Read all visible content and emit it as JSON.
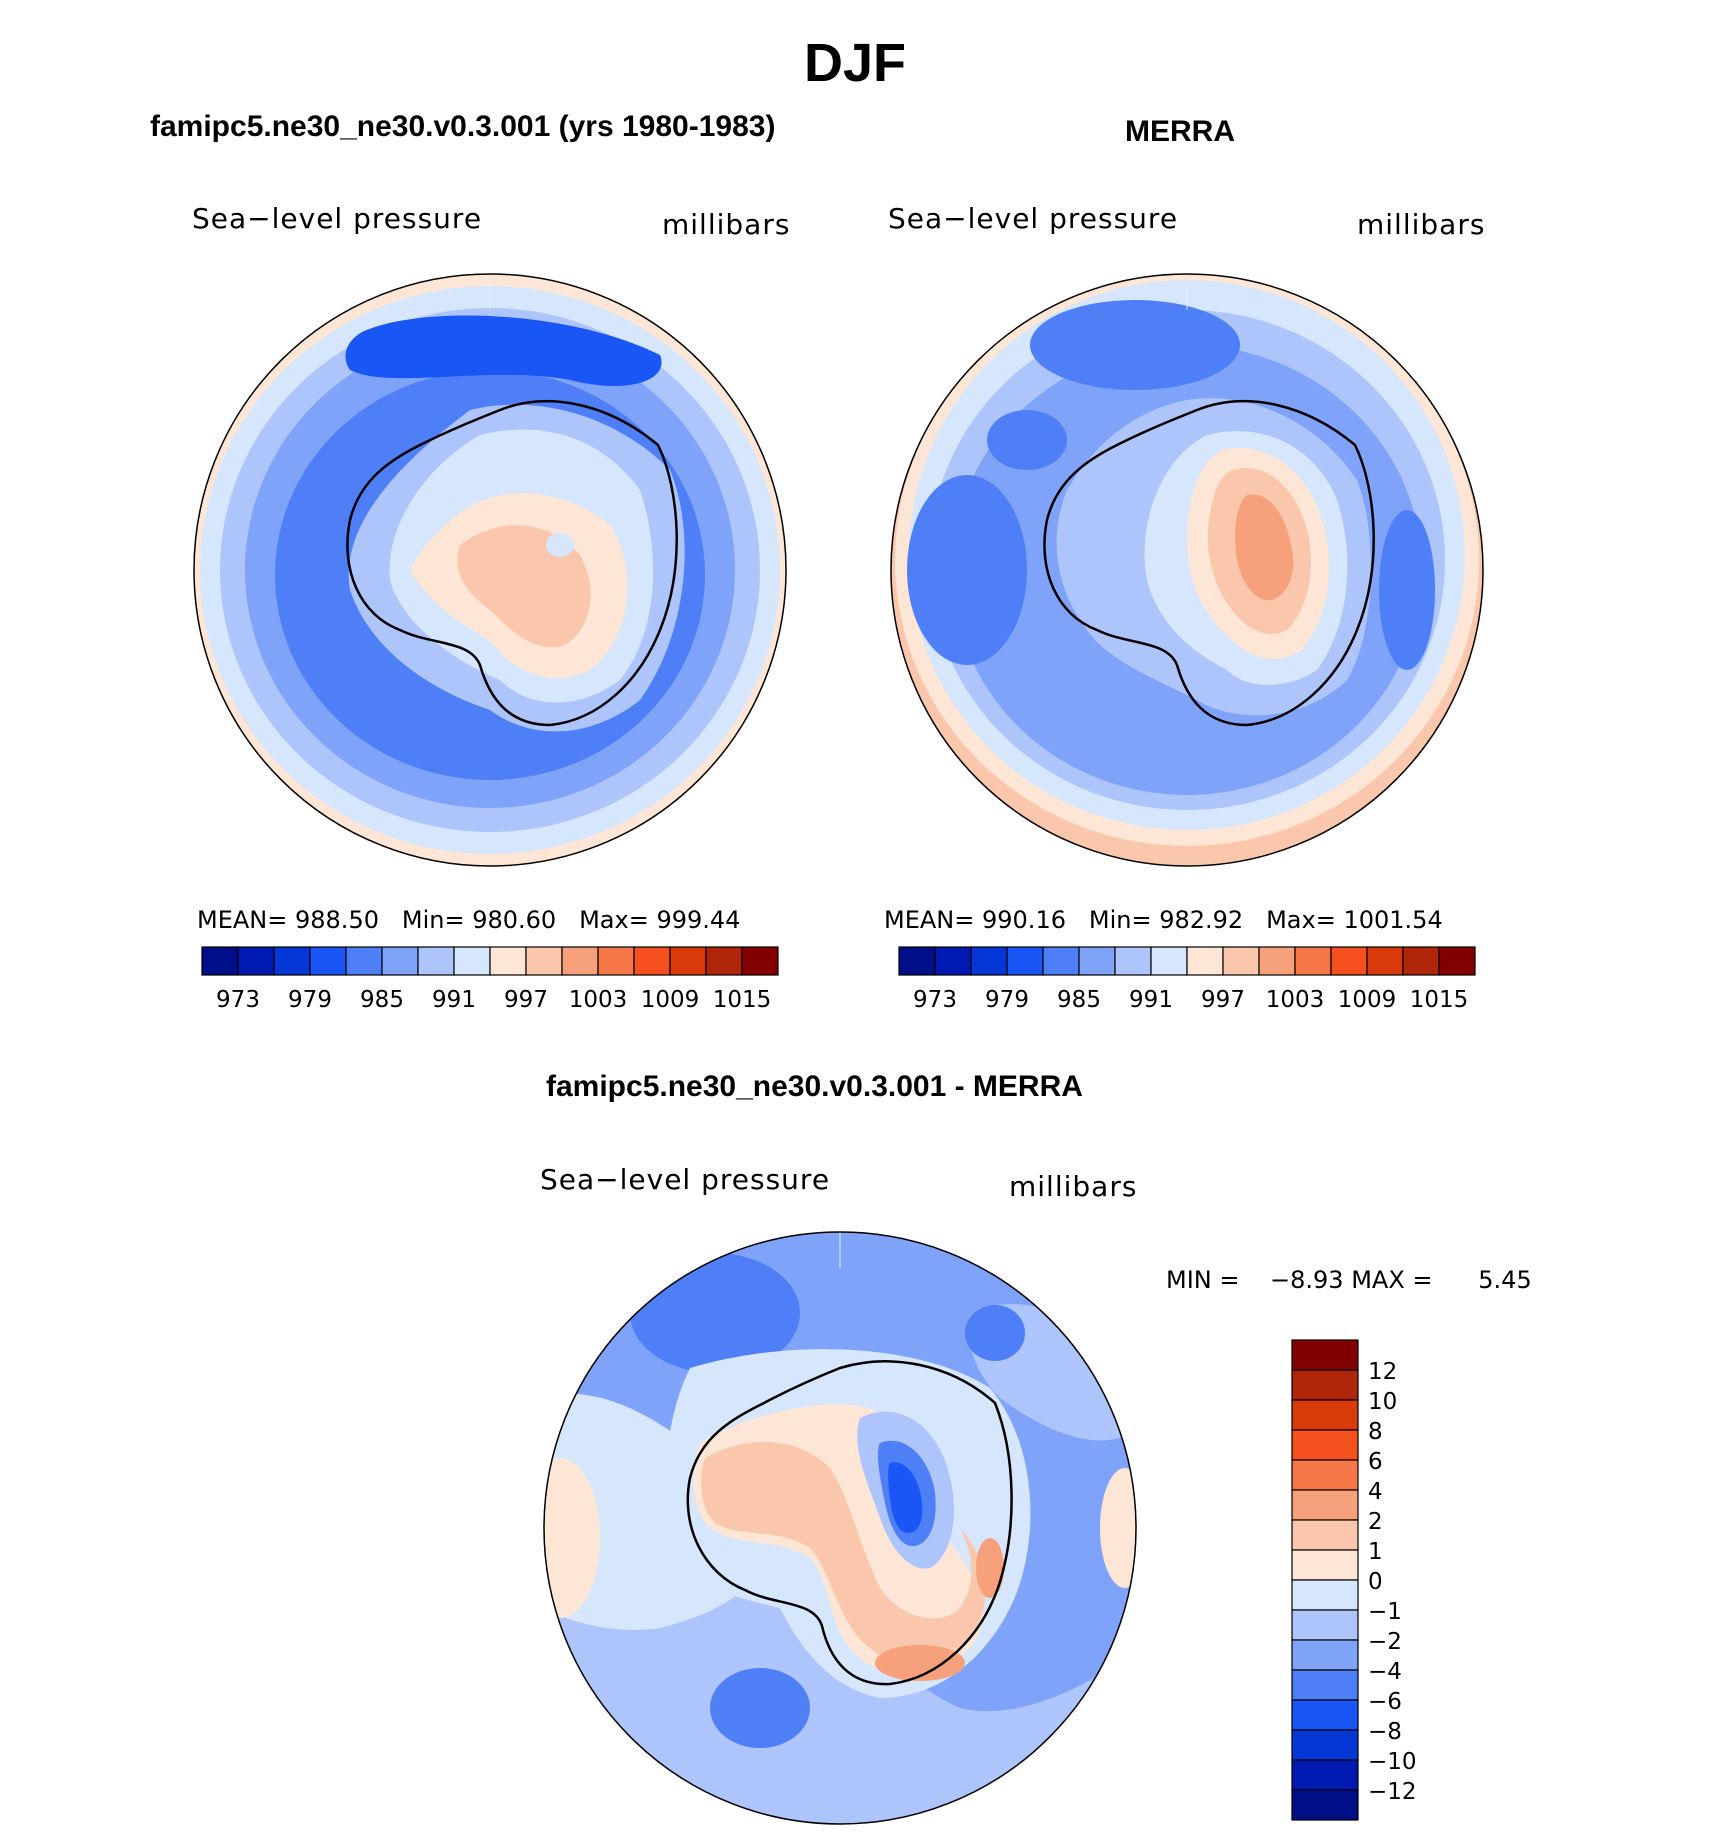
{
  "figure": {
    "title": "DJF"
  },
  "panels": [
    {
      "title": "famipc5.ne30_ne30.v0.3.001 (yrs 1980-1983)",
      "variable": "Sea−level pressure",
      "units": "millibars",
      "stats": {
        "mean_label": "MEAN=",
        "mean": "988.50",
        "min_label": "Min=",
        "min": "980.60",
        "max_label": "Max=",
        "max": "999.44"
      }
    },
    {
      "title": "MERRA",
      "variable": "Sea−level pressure",
      "units": "millibars",
      "stats": {
        "mean_label": "MEAN=",
        "mean": "990.16",
        "min_label": "Min=",
        "min": "982.92",
        "max_label": "Max=",
        "max": "1001.54"
      }
    },
    {
      "title": "famipc5.ne30_ne30.v0.3.001 - MERRA",
      "variable": "Sea−level pressure",
      "units": "millibars",
      "stats": {
        "min_label": "MIN =",
        "min": "−8.93",
        "max_label": "MAX =",
        "max": "5.45"
      }
    }
  ],
  "chart_data": [
    {
      "type": "heatmap",
      "projection": "south-polar-stereographic",
      "title": "famipc5.ne30_ne30.v0.3.001 (yrs 1980-1983)",
      "variable": "Sea-level pressure",
      "units": "millibars",
      "mean": 988.5,
      "min": 980.6,
      "max": 999.44,
      "colorbar": {
        "tick_labels": [
          "973",
          "979",
          "985",
          "991",
          "997",
          "1003",
          "1009",
          "1015"
        ],
        "colors": [
          "#000f87",
          "#0019b0",
          "#0537d6",
          "#1a55f5",
          "#4f7ff7",
          "#7fa3f8",
          "#adc5fb",
          "#d6e6fc",
          "#fde6d6",
          "#fac7ad",
          "#f7a07c",
          "#f57748",
          "#f4511e",
          "#d93a0a",
          "#b0260a",
          "#820000"
        ]
      }
    },
    {
      "type": "heatmap",
      "projection": "south-polar-stereographic",
      "title": "MERRA",
      "variable": "Sea-level pressure",
      "units": "millibars",
      "mean": 990.16,
      "min": 982.92,
      "max": 1001.54,
      "colorbar": {
        "tick_labels": [
          "973",
          "979",
          "985",
          "991",
          "997",
          "1003",
          "1009",
          "1015"
        ],
        "colors": [
          "#000f87",
          "#0019b0",
          "#0537d6",
          "#1a55f5",
          "#4f7ff7",
          "#7fa3f8",
          "#adc5fb",
          "#d6e6fc",
          "#fde6d6",
          "#fac7ad",
          "#f7a07c",
          "#f57748",
          "#f4511e",
          "#d93a0a",
          "#b0260a",
          "#820000"
        ]
      }
    },
    {
      "type": "heatmap",
      "projection": "south-polar-stereographic",
      "title": "famipc5.ne30_ne30.v0.3.001 - MERRA",
      "variable": "Sea-level pressure",
      "units": "millibars",
      "min": -8.93,
      "max": 5.45,
      "colorbar": {
        "tick_labels": [
          "12",
          "10",
          "8",
          "6",
          "4",
          "2",
          "1",
          "0",
          "−1",
          "−2",
          "−4",
          "−6",
          "−8",
          "−10",
          "−12"
        ],
        "colors": [
          "#820000",
          "#b0260a",
          "#d93a0a",
          "#f4511e",
          "#f57748",
          "#f7a07c",
          "#fac7ad",
          "#fde6d6",
          "#d6e6fc",
          "#adc5fb",
          "#7fa3f8",
          "#4f7ff7",
          "#1a55f5",
          "#0537d6",
          "#0019b0",
          "#000f87"
        ]
      }
    }
  ]
}
